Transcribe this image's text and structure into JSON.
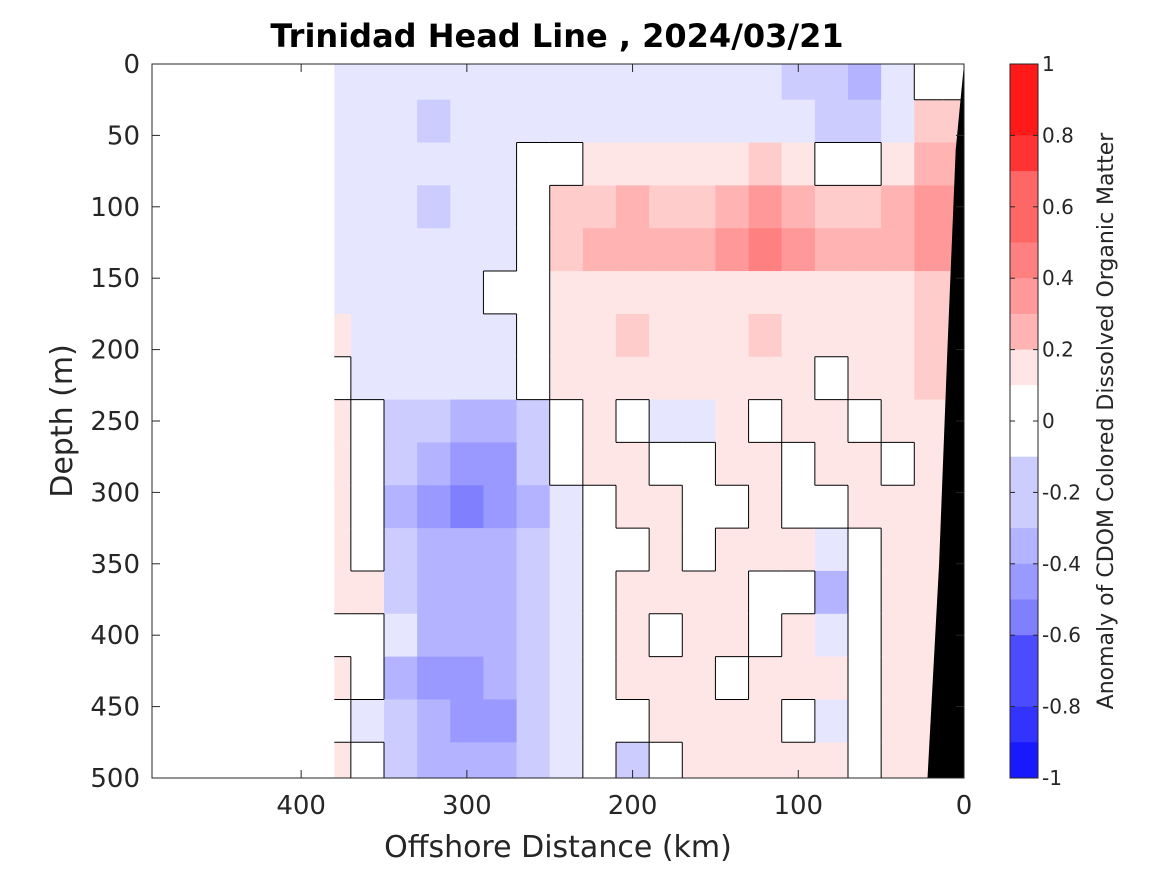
{
  "chart_data": {
    "type": "heatmap",
    "title": "Trinidad Head Line , 2024/03/21",
    "xlabel": "Offshore Distance (km)",
    "ylabel": "Depth (m)",
    "colorbar_label": "Anomaly of CDOM Colored Dissolved Organic Matter",
    "xlim": [
      490,
      0
    ],
    "ylim": [
      0,
      500
    ],
    "x_ticks": [
      400,
      300,
      200,
      100,
      0
    ],
    "x_tick_labels": [
      "400",
      "300",
      "200",
      "100",
      "0"
    ],
    "y_ticks": [
      0,
      50,
      100,
      150,
      200,
      250,
      300,
      350,
      400,
      450,
      500
    ],
    "y_tick_labels": [
      "0",
      "50",
      "100",
      "150",
      "200",
      "250",
      "300",
      "350",
      "400",
      "450",
      "500"
    ],
    "clim": [
      -1,
      1
    ],
    "colorbar_ticks": [
      1,
      0.8,
      0.6,
      0.4,
      0.2,
      0,
      -0.2,
      -0.4,
      -0.6,
      -0.8,
      -1
    ],
    "colorbar_tick_labels": [
      "1",
      "0.8",
      "0.6",
      "0.4",
      "0.2",
      "0",
      "-0.2",
      "-0.4",
      "-0.6",
      "-0.8",
      "-1"
    ],
    "colormap": {
      "negative": "#0000ff",
      "zero": "#ffffff",
      "positive": "#ff0000",
      "levels": 20
    },
    "data_start_distance_km": 380,
    "seafloor_color": "#000000",
    "columns_km": [
      380,
      360,
      340,
      320,
      300,
      280,
      260,
      240,
      220,
      200,
      180,
      160,
      140,
      120,
      100,
      80,
      60,
      40,
      20,
      5
    ],
    "rows_depth_m": [
      10,
      40,
      70,
      100,
      130,
      160,
      190,
      220,
      250,
      280,
      310,
      340,
      370,
      400,
      430,
      460,
      490
    ],
    "values": [
      [
        -0.1,
        -0.1,
        -0.1,
        -0.1,
        -0.1,
        -0.1,
        -0.1,
        -0.1,
        -0.1,
        -0.1,
        -0.1,
        -0.1,
        -0.1,
        -0.1,
        -0.2,
        -0.2,
        -0.3,
        -0.1,
        0.0,
        0.0
      ],
      [
        -0.1,
        -0.1,
        -0.1,
        -0.2,
        -0.1,
        -0.1,
        -0.1,
        -0.1,
        -0.1,
        -0.1,
        -0.1,
        -0.1,
        -0.1,
        -0.1,
        -0.1,
        -0.2,
        -0.2,
        -0.1,
        0.2,
        0.2
      ],
      [
        -0.1,
        -0.1,
        -0.1,
        -0.1,
        -0.1,
        -0.1,
        0.0,
        0.0,
        0.1,
        0.1,
        0.1,
        0.1,
        0.1,
        0.2,
        0.1,
        0.0,
        0.0,
        0.1,
        0.3,
        0.3
      ],
      [
        -0.1,
        -0.1,
        -0.1,
        -0.2,
        -0.1,
        -0.1,
        0.0,
        0.2,
        0.2,
        0.3,
        0.2,
        0.2,
        0.3,
        0.4,
        0.3,
        0.2,
        0.2,
        0.3,
        0.4,
        0.4
      ],
      [
        -0.1,
        -0.1,
        -0.1,
        -0.1,
        -0.1,
        -0.1,
        0.0,
        0.2,
        0.3,
        0.3,
        0.3,
        0.3,
        0.4,
        0.5,
        0.4,
        0.3,
        0.3,
        0.3,
        0.4,
        0.4
      ],
      [
        -0.1,
        -0.1,
        -0.1,
        -0.1,
        -0.1,
        0.0,
        0.0,
        0.1,
        0.1,
        0.1,
        0.1,
        0.1,
        0.1,
        0.1,
        0.1,
        0.1,
        0.1,
        0.1,
        0.2,
        0.2
      ],
      [
        0.1,
        -0.1,
        -0.1,
        -0.1,
        -0.1,
        -0.1,
        0.0,
        0.1,
        0.1,
        0.2,
        0.1,
        0.1,
        0.1,
        0.2,
        0.1,
        0.1,
        0.1,
        0.1,
        0.2,
        0.2
      ],
      [
        0.0,
        -0.1,
        -0.1,
        -0.1,
        -0.1,
        -0.1,
        0.0,
        0.1,
        0.1,
        0.1,
        0.1,
        0.1,
        0.1,
        0.1,
        0.1,
        0.0,
        0.1,
        0.1,
        0.2,
        0.2
      ],
      [
        0.1,
        0.0,
        -0.2,
        -0.2,
        -0.3,
        -0.3,
        -0.2,
        0.0,
        0.1,
        0.0,
        -0.1,
        -0.1,
        0.1,
        0.0,
        0.1,
        0.1,
        0.0,
        0.1,
        0.1,
        0.1
      ],
      [
        0.1,
        0.0,
        -0.2,
        -0.3,
        -0.4,
        -0.4,
        -0.2,
        0.0,
        0.1,
        0.1,
        0.0,
        0.0,
        0.1,
        0.1,
        0.0,
        0.1,
        0.1,
        0.0,
        0.1,
        0.1
      ],
      [
        0.1,
        0.0,
        -0.3,
        -0.4,
        -0.5,
        -0.4,
        -0.3,
        -0.1,
        0.0,
        0.1,
        0.1,
        0.0,
        0.0,
        0.1,
        0.0,
        0.0,
        0.1,
        0.1,
        0.1,
        0.1
      ],
      [
        0.1,
        0.0,
        -0.2,
        -0.3,
        -0.3,
        -0.3,
        -0.2,
        -0.1,
        0.0,
        0.0,
        0.1,
        0.0,
        0.1,
        0.1,
        0.1,
        -0.1,
        0.0,
        0.1,
        0.1,
        0.1
      ],
      [
        0.1,
        0.1,
        -0.2,
        -0.3,
        -0.3,
        -0.3,
        -0.2,
        -0.1,
        0.0,
        0.1,
        0.1,
        0.1,
        0.1,
        0.0,
        0.0,
        -0.3,
        0.0,
        0.1,
        0.1,
        0.1
      ],
      [
        0.0,
        0.0,
        -0.1,
        -0.3,
        -0.3,
        -0.3,
        -0.2,
        -0.1,
        0.0,
        0.1,
        0.0,
        0.1,
        0.1,
        0.0,
        0.1,
        -0.1,
        0.0,
        0.1,
        0.1,
        0.1
      ],
      [
        0.1,
        0.0,
        -0.3,
        -0.4,
        -0.4,
        -0.3,
        -0.2,
        -0.1,
        0.0,
        0.1,
        0.1,
        0.1,
        0.0,
        0.1,
        0.1,
        0.1,
        0.0,
        0.1,
        0.1,
        0.1
      ],
      [
        0.0,
        -0.1,
        -0.2,
        -0.3,
        -0.4,
        -0.4,
        -0.2,
        -0.1,
        0.0,
        0.0,
        0.1,
        0.1,
        0.1,
        0.1,
        0.0,
        -0.1,
        0.0,
        0.1,
        0.1,
        0.1
      ],
      [
        0.1,
        0.0,
        -0.2,
        -0.3,
        -0.3,
        -0.3,
        -0.2,
        -0.1,
        0.0,
        -0.2,
        0.0,
        0.1,
        0.1,
        0.1,
        0.1,
        0.1,
        0.0,
        0.1,
        0.1,
        0.1
      ]
    ],
    "seafloor_outline_km_depth": [
      [
        0,
        0
      ],
      [
        5,
        60
      ],
      [
        10,
        200
      ],
      [
        15,
        350
      ],
      [
        22,
        500
      ],
      [
        0,
        500
      ]
    ]
  }
}
